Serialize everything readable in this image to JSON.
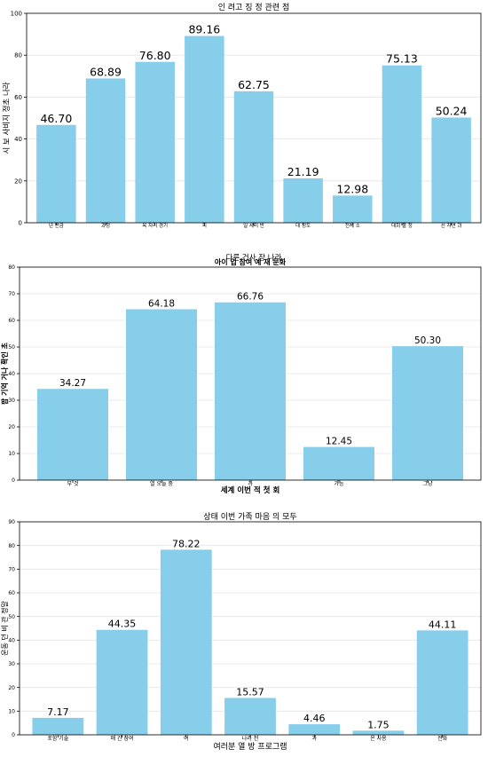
{
  "chart_data": [
    {
      "type": "bar",
      "title": "인 려고 징 정 관련 점",
      "xlabel": "다른 건사 장 나라",
      "ylabel": "시 보 사비지 정초 나라",
      "ylim": [
        0,
        100
      ],
      "yticks": [
        0,
        20,
        40,
        60,
        80,
        100
      ],
      "grid": true,
      "bar_color": "#87ceeb",
      "categories": [
        "년 만금",
        "과정",
        "목 자리 경기",
        "피",
        "일 세리 반",
        "대 정도",
        "전체 소",
        "대회 볼 정",
        "선 자연 과"
      ],
      "values": [
        46.7,
        68.89,
        76.8,
        89.16,
        62.75,
        21.19,
        12.98,
        75.13,
        50.24
      ],
      "value_labels": [
        "46.70",
        "68.89",
        "76.80",
        "89.16",
        "62.75",
        "21.19",
        "12.98",
        "75.13",
        "50.24"
      ]
    },
    {
      "type": "bar",
      "title": "아이 입 참여 예 재 문화",
      "xlabel": "세계 이번 적 첫 회",
      "ylabel": "팝 기억 거나 확인 초",
      "ylim": [
        0,
        80
      ],
      "yticks": [
        0,
        10,
        20,
        30,
        40,
        50,
        60,
        70,
        80
      ],
      "grid": true,
      "bar_color": "#87ceeb",
      "categories": [
        "부 것",
        "열 오늘 중",
        "과",
        "가능",
        "그냥"
      ],
      "values": [
        34.27,
        64.18,
        66.76,
        12.45,
        50.3
      ],
      "value_labels": [
        "34.27",
        "64.18",
        "66.76",
        "12.45",
        "50.30"
      ]
    },
    {
      "type": "bar",
      "title": "상태 이번 가족 마음 의 모두",
      "xlabel": "여러분 열 방 프로그램",
      "ylabel": "운동 던 비 관 정말",
      "ylim": [
        0,
        90
      ],
      "yticks": [
        0,
        10,
        20,
        30,
        40,
        50,
        60,
        70,
        80,
        90
      ],
      "grid": true,
      "bar_color": "#87ceeb",
      "categories": [
        "포함 기술",
        "매 간 참여",
        "여",
        "나라 천",
        "과",
        "온 사용",
        "전화"
      ],
      "values": [
        7.17,
        44.35,
        78.22,
        15.57,
        4.46,
        1.75,
        44.11
      ],
      "value_labels": [
        "7.17",
        "44.35",
        "78.22",
        "15.57",
        "4.46",
        "1.75",
        "44.11"
      ]
    }
  ]
}
